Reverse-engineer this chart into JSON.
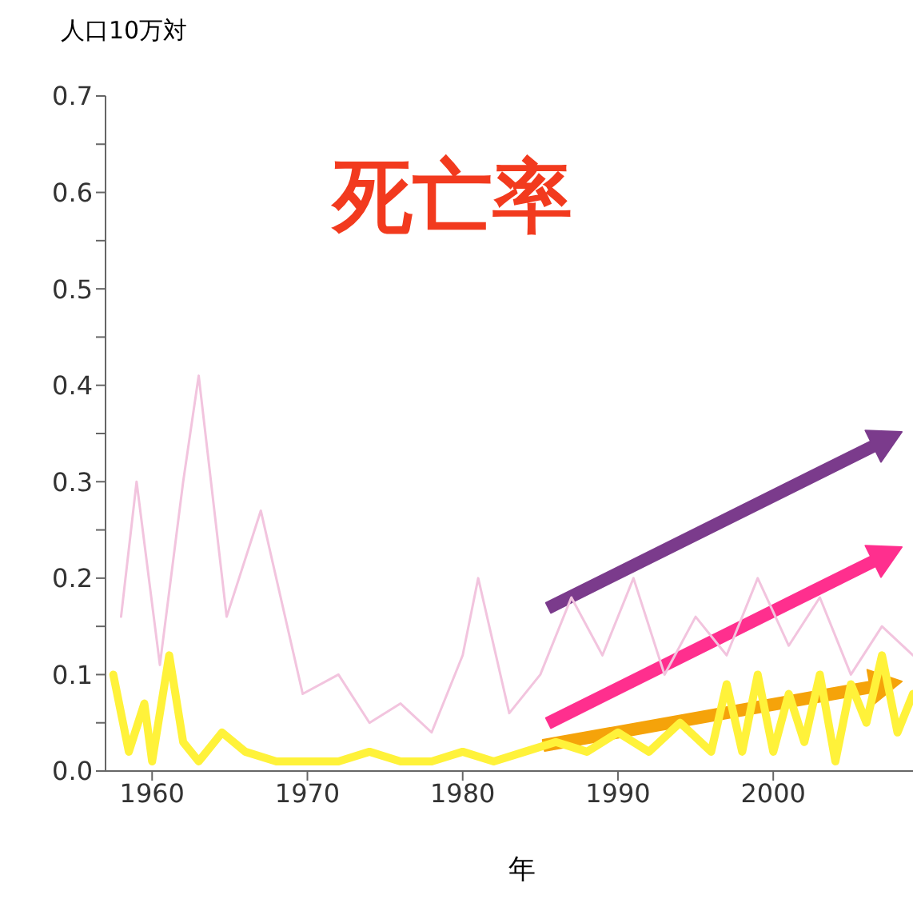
{
  "chart_data": {
    "type": "line",
    "title": "死亡率",
    "ylabel": "人口10万対",
    "xlabel": "年",
    "xlim": [
      1957,
      2009
    ],
    "xticks": [
      1960,
      1970,
      1980,
      1990,
      2000
    ],
    "ylim": [
      0,
      0.7
    ],
    "yticks": [
      {
        "value": 0,
        "label": "0.0"
      },
      {
        "value": 0.05,
        "label": null
      },
      0.1,
      {
        "value": 0.15,
        "label": null
      },
      0.2,
      {
        "value": 0.25,
        "label": null
      },
      0.3,
      {
        "value": 0.35,
        "label": null
      },
      0.4,
      {
        "value": 0.45,
        "label": null
      },
      0.5,
      {
        "value": 0.55,
        "label": null
      },
      0.6,
      {
        "value": 0.65,
        "label": null
      },
      0.7
    ],
    "grid": false,
    "marker": "none",
    "series": [
      {
        "color": "#f2c4de",
        "x": [
          1958,
          1959,
          1960.5,
          1962,
          1963,
          1964.8,
          1967,
          1969.7,
          1972,
          1974,
          1976,
          1978,
          1980,
          1981,
          1983,
          1985,
          1987,
          1989,
          1991,
          1993,
          1995,
          1997,
          1999,
          2001,
          2003,
          2005,
          2007,
          2009
        ],
        "values": [
          0.16,
          0.3,
          0.11,
          0.3,
          0.41,
          0.16,
          0.27,
          0.08,
          0.1,
          0.05,
          0.07,
          0.04,
          0.12,
          0.2,
          0.06,
          0.1,
          0.18,
          0.12,
          0.2,
          0.1,
          0.16,
          0.12,
          0.2,
          0.13,
          0.18,
          0.1,
          0.15,
          0.12
        ]
      },
      {
        "color": "#fff23a",
        "x": [
          1957.5,
          1958.5,
          1959.5,
          1960,
          1961.1,
          1962,
          1963,
          1964.5,
          1966,
          1968,
          1970,
          1972,
          1974,
          1976,
          1978,
          1980,
          1982,
          1984,
          1986,
          1988,
          1990,
          1992,
          1994,
          1996,
          1997,
          1998,
          1999,
          2000,
          2001,
          2002,
          2003,
          2004,
          2005,
          2006,
          2007,
          2008,
          2009
        ],
        "values": [
          0.1,
          0.02,
          0.07,
          0.01,
          0.12,
          0.03,
          0.01,
          0.04,
          0.02,
          0.01,
          0.01,
          0.01,
          0.02,
          0.01,
          0.01,
          0.02,
          0.01,
          0.02,
          0.03,
          0.02,
          0.04,
          0.02,
          0.05,
          0.02,
          0.09,
          0.02,
          0.1,
          0.02,
          0.08,
          0.03,
          0.1,
          0.01,
          0.09,
          0.05,
          0.12,
          0.04,
          0.08
        ]
      }
    ]
  }
}
